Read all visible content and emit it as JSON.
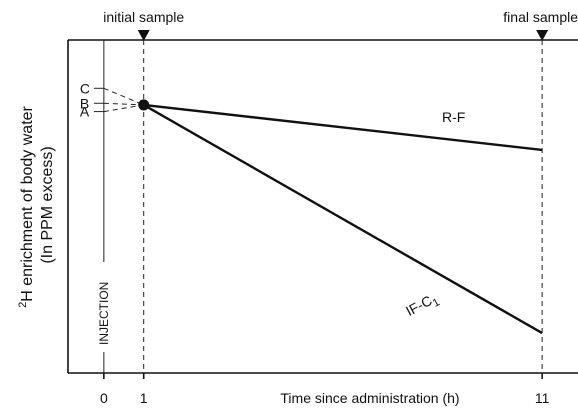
{
  "chart_data": {
    "type": "line",
    "xlabel": "Time since administration (h)",
    "ylabel_line1": "2H enrichment of body water",
    "ylabel_sup": "2",
    "ylabel_main": "H enrichment of body water",
    "ylabel_line2": "(In PPM excess)",
    "x_ticks": [
      "0",
      "1",
      "11"
    ],
    "xlim": [
      -0.9,
      11.9
    ],
    "ylim": [
      0,
      10
    ],
    "markers": [
      {
        "label": "initial sample",
        "x": 1
      },
      {
        "label": "final sample",
        "x": 11
      }
    ],
    "injection": {
      "label": "INJECTION",
      "x": 0
    },
    "series": [
      {
        "name": "R-F",
        "x": [
          1,
          11
        ],
        "y": [
          8.05,
          6.7
        ]
      },
      {
        "name": "IF-C",
        "name_base": "IF-C",
        "name_sub": "1",
        "x": [
          1,
          11
        ],
        "y": [
          8.05,
          1.2
        ]
      }
    ],
    "extrapolations": [
      {
        "label": "C",
        "x": [
          0,
          1
        ],
        "y": [
          8.55,
          8.05
        ]
      },
      {
        "label": "B",
        "x": [
          0,
          1
        ],
        "y": [
          8.1,
          8.05
        ]
      },
      {
        "label": "A",
        "x": [
          0,
          1
        ],
        "y": [
          7.85,
          8.05
        ]
      }
    ],
    "common_point": {
      "x": 1,
      "y": 8.05
    }
  }
}
